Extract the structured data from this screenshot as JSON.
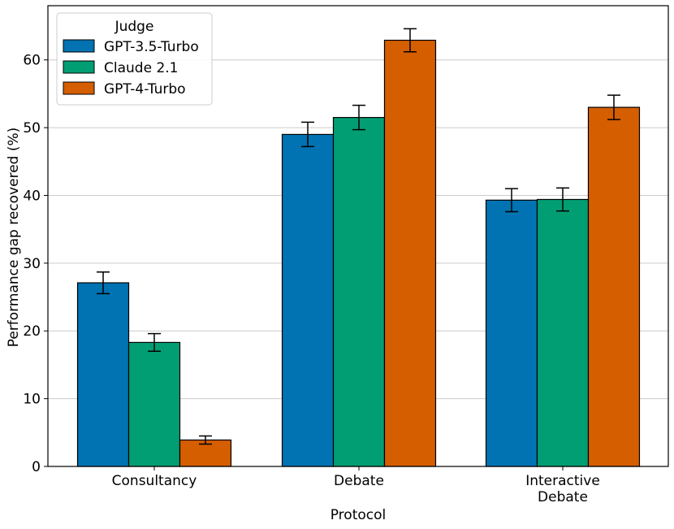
{
  "chart_data": {
    "type": "bar",
    "title": "",
    "xlabel": "Protocol",
    "ylabel": "Performance gap recovered (%)",
    "ylim": [
      0,
      68
    ],
    "yticks": [
      0,
      10,
      20,
      30,
      40,
      50,
      60
    ],
    "grid": "horizontal",
    "categories": [
      "Consultancy",
      "Debate",
      "Interactive Debate"
    ],
    "category_lines": [
      [
        "Consultancy"
      ],
      [
        "Debate"
      ],
      [
        "Interactive",
        "Debate"
      ]
    ],
    "legend_title": "Judge",
    "legend_position": "top-left",
    "series": [
      {
        "name": "GPT-3.5-Turbo",
        "color": "#0173b2",
        "values": [
          27.1,
          49.0,
          39.3
        ],
        "errors": [
          1.6,
          1.8,
          1.7
        ]
      },
      {
        "name": "Claude 2.1",
        "color": "#029e73",
        "values": [
          18.3,
          51.5,
          39.4
        ],
        "errors": [
          1.3,
          1.8,
          1.7
        ]
      },
      {
        "name": "GPT-4-Turbo",
        "color": "#d55e00",
        "values": [
          3.9,
          62.9,
          53.0
        ],
        "errors": [
          0.6,
          1.7,
          1.8
        ]
      }
    ]
  }
}
